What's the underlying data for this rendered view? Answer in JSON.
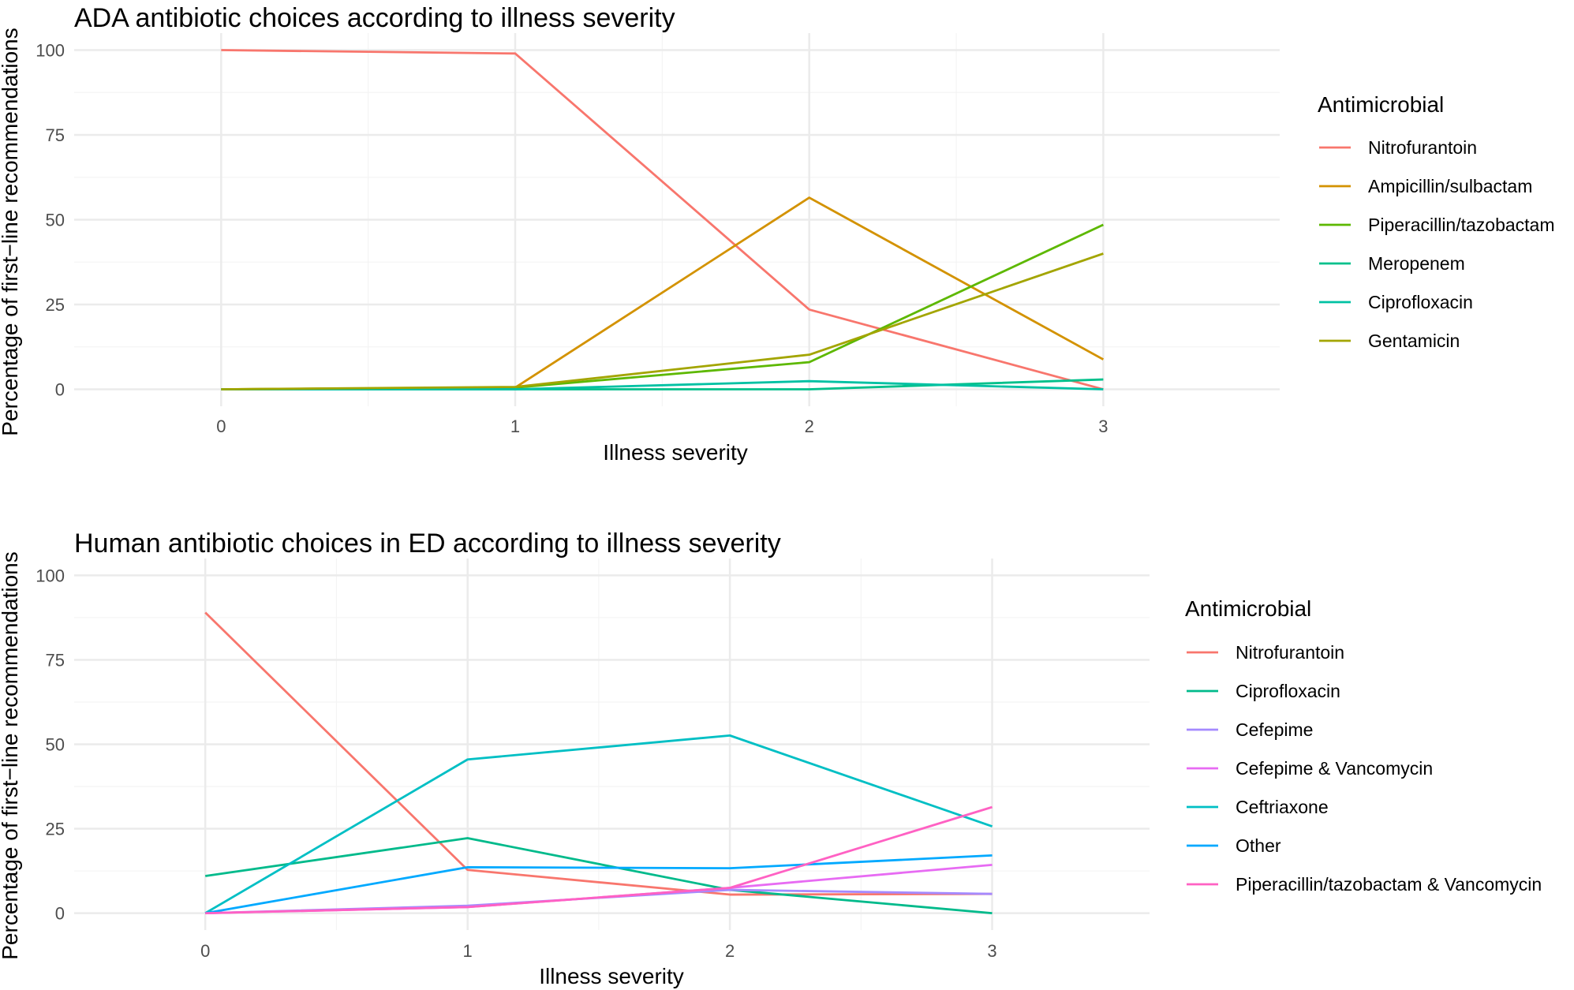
{
  "chart_data": [
    {
      "type": "line",
      "title": "ADA antibiotic choices according to illness severity",
      "xlabel": "Illness severity",
      "ylabel": "Percentage of first−line recommendations",
      "x": [
        0,
        1,
        2,
        3
      ],
      "x_tick_labels": [
        "0",
        "1",
        "2",
        "3"
      ],
      "y_ticks": [
        0,
        25,
        50,
        75,
        100
      ],
      "y_tick_labels": [
        "0",
        "25",
        "50",
        "75",
        "100"
      ],
      "xlim": [
        -0.5,
        3.6
      ],
      "ylim": [
        -5,
        105
      ],
      "grid": true,
      "legend": {
        "title": "Antimicrobial",
        "position": "right"
      },
      "series": [
        {
          "name": "Nitrofurantoin",
          "color": "#F8766D",
          "values": [
            100,
            99,
            23.5,
            0
          ]
        },
        {
          "name": "Ampicillin/sulbactam",
          "color": "#D39200",
          "values": [
            0,
            0.5,
            56.5,
            8.8
          ]
        },
        {
          "name": "Piperacillin/tazobactam",
          "color": "#5DB800",
          "values": [
            0,
            0.5,
            8,
            48.5
          ]
        },
        {
          "name": "Meropenem",
          "color": "#00C08B",
          "values": [
            0,
            0,
            0,
            2.9
          ]
        },
        {
          "name": "Ciprofloxacin",
          "color": "#00C1A3",
          "values": [
            0,
            0,
            2.4,
            0
          ]
        },
        {
          "name": "Gentamicin",
          "color": "#A3A500",
          "values": [
            0,
            0.7,
            10.2,
            40
          ]
        }
      ]
    },
    {
      "type": "line",
      "title": "Human antibiotic choices in ED according to illness severity",
      "xlabel": "Illness severity",
      "ylabel": "Percentage of first−line recommendations",
      "x": [
        0,
        1,
        2,
        3
      ],
      "x_tick_labels": [
        "0",
        "1",
        "2",
        "3"
      ],
      "y_ticks": [
        0,
        25,
        50,
        75,
        100
      ],
      "y_tick_labels": [
        "0",
        "25",
        "50",
        "75",
        "100"
      ],
      "xlim": [
        -0.5,
        3.6
      ],
      "ylim": [
        -5,
        105
      ],
      "grid": true,
      "legend": {
        "title": "Antimicrobial",
        "position": "right"
      },
      "series": [
        {
          "name": "Nitrofurantoin",
          "color": "#F8766D",
          "values": [
            89,
            12.8,
            5.5,
            5.7
          ]
        },
        {
          "name": "Ciprofloxacin",
          "color": "#00BA8B",
          "values": [
            11,
            22.2,
            6.9,
            0
          ]
        },
        {
          "name": "Cefepime",
          "color": "#A58AFF",
          "values": [
            0,
            2.2,
            6.9,
            5.7
          ]
        },
        {
          "name": "Cefepime & Vancomycin",
          "color": "#E76BF3",
          "values": [
            0,
            1.8,
            7.5,
            14.3
          ]
        },
        {
          "name": "Ceftriaxone",
          "color": "#00BFC4",
          "values": [
            0,
            45.5,
            52.6,
            25.7
          ]
        },
        {
          "name": "Other",
          "color": "#00A9FF",
          "values": [
            0,
            13.6,
            13.3,
            17.1
          ]
        },
        {
          "name": "Piperacillin/tazobactam & Vancomycin",
          "color": "#FF61C3",
          "values": [
            0,
            1.8,
            7.5,
            31.4
          ]
        }
      ]
    }
  ]
}
